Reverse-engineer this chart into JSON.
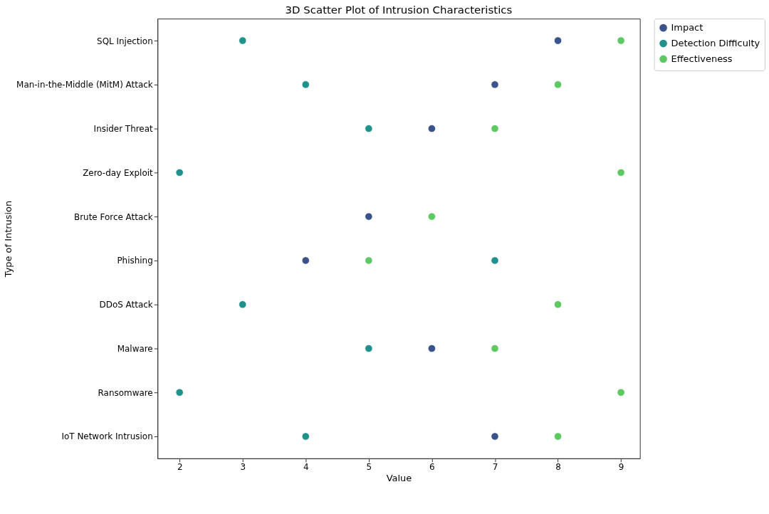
{
  "chart_data": {
    "type": "scatter",
    "title": "3D Scatter Plot of Intrusion Characteristics",
    "xlabel": "Value",
    "ylabel": "Type of Intrusion",
    "categories": [
      "SQL Injection",
      "Man-in-the-Middle (MitM) Attack",
      "Insider Threat",
      "Zero-day Exploit",
      "Brute Force Attack",
      "Phishing",
      "DDoS Attack",
      "Malware",
      "Ransomware",
      "IoT Network Intrusion"
    ],
    "series": [
      {
        "name": "Impact",
        "color": "#3b528b",
        "values": [
          8,
          7,
          6,
          null,
          5,
          4,
          null,
          6,
          null,
          7
        ]
      },
      {
        "name": "Detection Difficulty",
        "color": "#21918c",
        "values": [
          3,
          4,
          5,
          2,
          null,
          7,
          3,
          5,
          2,
          4
        ]
      },
      {
        "name": "Effectiveness",
        "color": "#5ec962",
        "values": [
          9,
          8,
          7,
          9,
          6,
          5,
          8,
          7,
          9,
          8
        ]
      }
    ],
    "orientation": "horizontal",
    "xlim": [
      1.65,
      9.3
    ],
    "xticks": [
      2,
      3,
      4,
      5,
      6,
      7,
      8,
      9
    ],
    "grid": false,
    "legend": "top right",
    "marker": "circle"
  }
}
